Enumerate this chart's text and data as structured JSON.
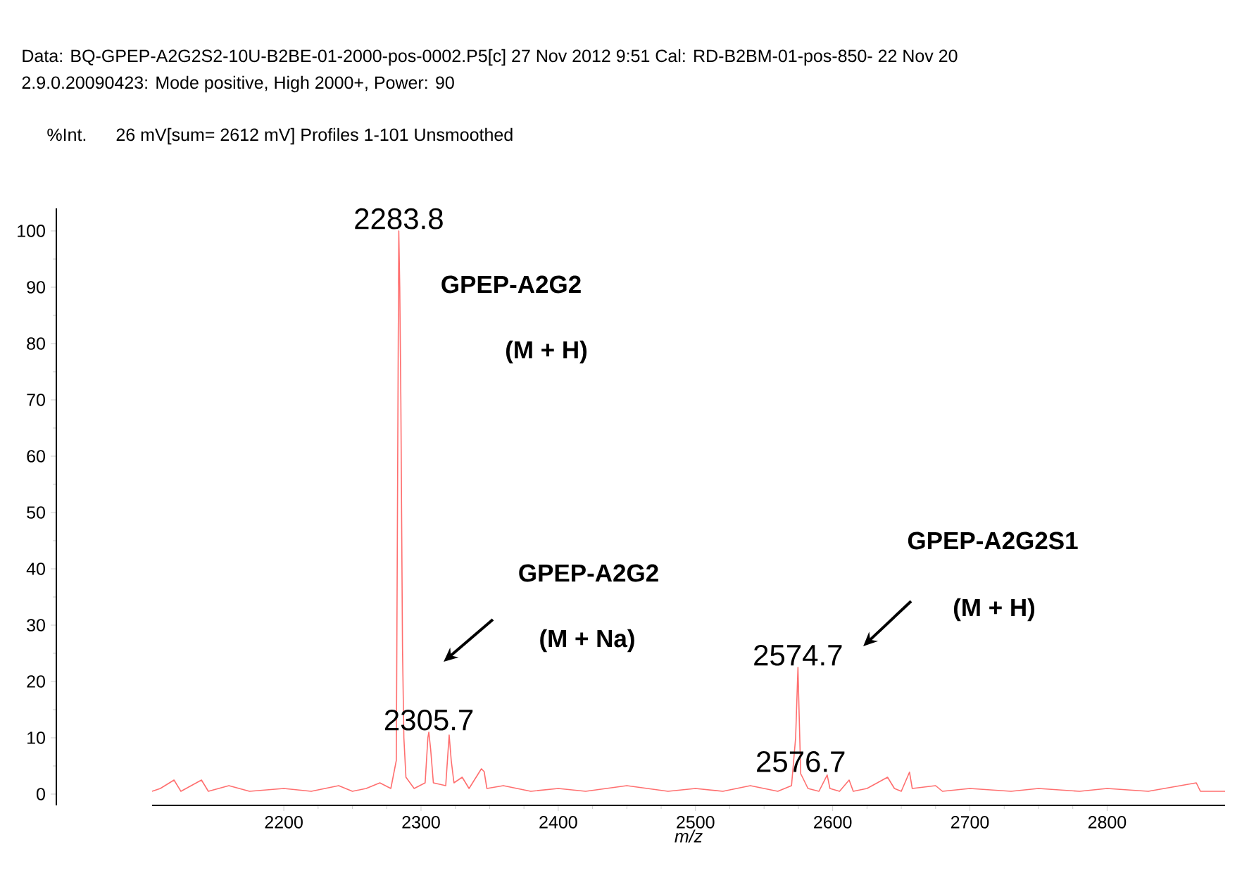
{
  "chart_data": {
    "type": "line",
    "title": "Data: BQ-GPEP-A2G2S2-10U-B2BE-01-2000-pos-0002.P5[c] 27 Nov 2012 9:51 Cal: RD-B2BM-01-pos-850- 22 Nov 20",
    "subtitle": "2.9.0.20090423: Mode positive, High 2000+, Power: 90",
    "ylabel": "%Int.",
    "xlabel": "*m/z*",
    "xlim": [
      2104,
      2886
    ],
    "ylim": [
      -2,
      104
    ],
    "xticks": [
      2200,
      2300,
      2400,
      2500,
      2600,
      2700,
      2800
    ],
    "yticks": [
      0,
      10,
      20,
      30,
      40,
      50,
      60,
      70,
      80,
      90,
      100
    ],
    "grid": false,
    "marker": "none",
    "line_style": "solid",
    "series": [
      {
        "color": "#ff6f6f",
        "x": [
          2104,
          2110,
          2120,
          2125,
          2140,
          2145,
          2160,
          2175,
          2200,
          2220,
          2240,
          2250,
          2260,
          2270,
          2278,
          2282,
          2283.3,
          2283.8,
          2284.5,
          2285.3,
          2286.5,
          2287.5,
          2289,
          2295,
          2303,
          2305,
          2305.7,
          2307,
          2309,
          2318,
          2320.5,
          2322,
          2324,
          2330,
          2335,
          2344,
          2346,
          2348,
          2360,
          2380,
          2400,
          2420,
          2450,
          2480,
          2500,
          2520,
          2540,
          2560,
          2570,
          2573,
          2574.7,
          2575.8,
          2576.7,
          2578,
          2582,
          2590,
          2596,
          2598,
          2605,
          2612,
          2615,
          2625,
          2640,
          2645,
          2650,
          2656,
          2658,
          2675,
          2680,
          2700,
          2730,
          2750,
          2780,
          2800,
          2830,
          2865,
          2868,
          2886
        ],
        "values": [
          0.5,
          1,
          2.5,
          0.5,
          2.5,
          0.5,
          1.5,
          0.5,
          1,
          0.5,
          1.5,
          0.5,
          1,
          2,
          1,
          6,
          75,
          100,
          90,
          70,
          26,
          10,
          3,
          1,
          2,
          10,
          11,
          8,
          2,
          1.5,
          10.5,
          6,
          2,
          3,
          1,
          4.5,
          4,
          1,
          1.5,
          0.5,
          1,
          0.5,
          1.5,
          0.5,
          1,
          0.5,
          1.5,
          0.5,
          1.5,
          10,
          22.5,
          12,
          3.6,
          3,
          1,
          0.5,
          3.4,
          1,
          0.5,
          2.5,
          0.5,
          1,
          3,
          1,
          0.5,
          3.9,
          1,
          1.5,
          0.5,
          1,
          0.5,
          1,
          0.5,
          1,
          0.5,
          2,
          0.5,
          0.5
        ]
      }
    ],
    "annotations": [
      "26 mV[sum= 2612 mV]  Profiles 1-101 Unsmoothed",
      {
        "text": "2283.8",
        "x": 2283.8,
        "y": 100
      },
      {
        "text": "2305.7",
        "x": 2305.7,
        "y": 11
      },
      {
        "text": "2574.7",
        "x": 2574.7,
        "y": 22.5
      },
      {
        "text": "2576.7",
        "x": 2576.7,
        "y": 3.6
      },
      "GPEP-A2G2",
      "(M + H)",
      "GPEP-A2G2",
      "(M + Na)",
      "GPEP-A2G2S1",
      "(M + H)"
    ]
  }
}
